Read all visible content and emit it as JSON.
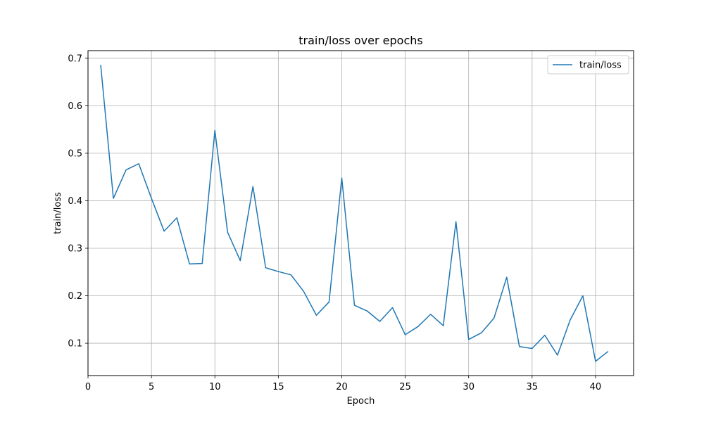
{
  "chart_data": {
    "type": "line",
    "title": "train/loss over epochs",
    "xlabel": "Epoch",
    "ylabel": "train/loss",
    "xlim": [
      -0.0,
      43.0
    ],
    "ylim": [
      0.032,
      0.716
    ],
    "xticks": [
      0,
      5,
      10,
      15,
      20,
      25,
      30,
      35,
      40
    ],
    "yticks": [
      0.1,
      0.2,
      0.3,
      0.4,
      0.5,
      0.6,
      0.7
    ],
    "grid": true,
    "legend_position": "top-right",
    "series": [
      {
        "name": "train/loss",
        "color": "#1f77b4",
        "x": [
          1,
          2,
          3,
          4,
          5,
          6,
          7,
          8,
          9,
          10,
          11,
          12,
          13,
          14,
          15,
          16,
          17,
          18,
          19,
          20,
          21,
          22,
          23,
          24,
          25,
          26,
          27,
          28,
          29,
          30,
          31,
          32,
          33,
          34,
          35,
          36,
          37,
          38,
          39,
          40,
          41
        ],
        "y": [
          0.686,
          0.405,
          0.465,
          0.478,
          0.405,
          0.336,
          0.364,
          0.267,
          0.268,
          0.548,
          0.334,
          0.274,
          0.43,
          0.259,
          0.251,
          0.244,
          0.209,
          0.159,
          0.187,
          0.448,
          0.18,
          0.168,
          0.146,
          0.175,
          0.118,
          0.135,
          0.161,
          0.137,
          0.356,
          0.108,
          0.122,
          0.153,
          0.239,
          0.093,
          0.089,
          0.117,
          0.075,
          0.149,
          0.2,
          0.062,
          0.083
        ]
      }
    ]
  }
}
